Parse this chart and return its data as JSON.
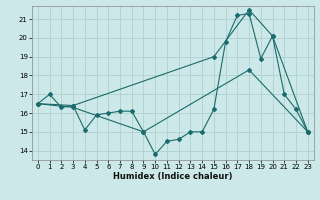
{
  "title": "",
  "xlabel": "Humidex (Indice chaleur)",
  "ylabel": "",
  "bg_color": "#cce8e8",
  "grid_color": "#aacccc",
  "line_color": "#1a6b6b",
  "xlim": [
    -0.5,
    23.5
  ],
  "ylim": [
    13.5,
    21.7
  ],
  "yticks": [
    14,
    15,
    16,
    17,
    18,
    19,
    20,
    21
  ],
  "xticks": [
    0,
    1,
    2,
    3,
    4,
    5,
    6,
    7,
    8,
    9,
    10,
    11,
    12,
    13,
    14,
    15,
    16,
    17,
    18,
    19,
    20,
    21,
    22,
    23
  ],
  "line1_x": [
    0,
    1,
    2,
    3,
    4,
    5,
    6,
    7,
    8,
    9,
    10,
    11,
    12,
    13,
    14,
    15,
    16,
    17,
    18,
    19,
    20,
    21,
    22,
    23
  ],
  "line1_y": [
    16.5,
    17.0,
    16.3,
    16.4,
    15.1,
    15.9,
    16.0,
    16.1,
    16.1,
    15.0,
    13.8,
    14.5,
    14.6,
    15.0,
    15.0,
    16.2,
    19.8,
    21.2,
    21.3,
    18.9,
    20.1,
    17.0,
    16.2,
    15.0
  ],
  "line2_x": [
    0,
    3,
    15,
    18,
    20,
    23
  ],
  "line2_y": [
    16.5,
    16.4,
    19.0,
    21.5,
    20.1,
    15.0
  ],
  "line3_x": [
    0,
    3,
    9,
    18,
    23
  ],
  "line3_y": [
    16.5,
    16.3,
    15.0,
    18.3,
    15.0
  ]
}
